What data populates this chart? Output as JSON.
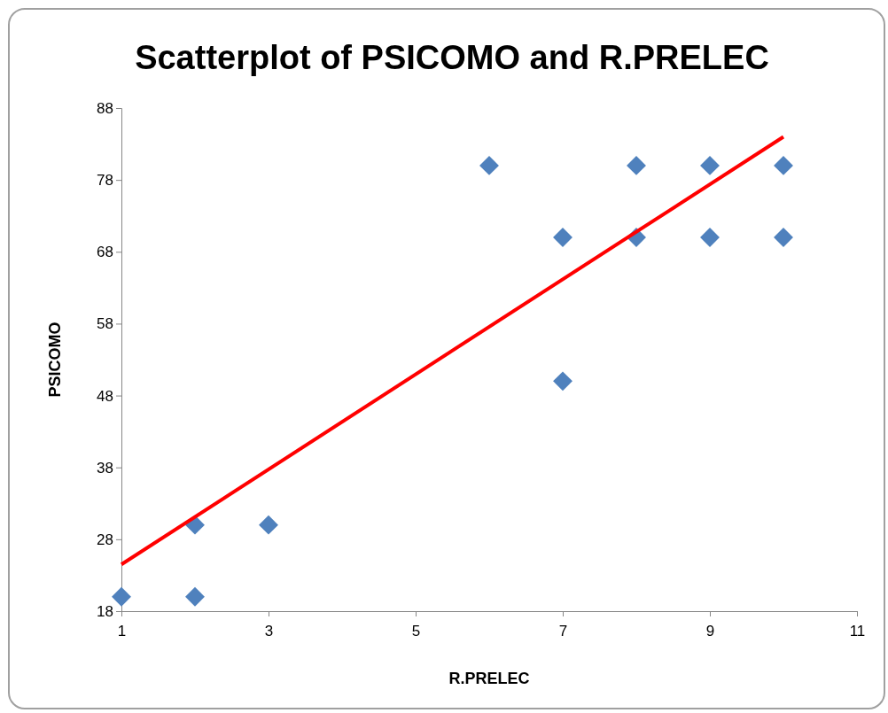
{
  "chart_data": {
    "type": "scatter",
    "title": "Scatterplot of PSICOMO and R.PRELEC",
    "xlabel": "R.PRELEC",
    "ylabel": "PSICOMO",
    "xlim": [
      1,
      11
    ],
    "xticks": [
      1,
      3,
      5,
      7,
      9,
      11
    ],
    "ylim": [
      18,
      88
    ],
    "yticks": [
      18,
      28,
      38,
      48,
      58,
      68,
      78,
      88
    ],
    "grid": false,
    "series": [
      {
        "color": "#4f81bd",
        "marker": "diamond",
        "x": [
          1,
          2,
          2,
          3,
          6,
          7,
          7,
          8,
          8,
          9,
          9,
          10,
          10
        ],
        "values": [
          20,
          30,
          20,
          30,
          80,
          70,
          50,
          80,
          70,
          80,
          70,
          80,
          70
        ]
      },
      {
        "type": "line",
        "color": "#ff0000",
        "marker": "none",
        "line_style": "solid",
        "x": [
          1,
          10
        ],
        "values": [
          24.5,
          84
        ]
      }
    ]
  }
}
